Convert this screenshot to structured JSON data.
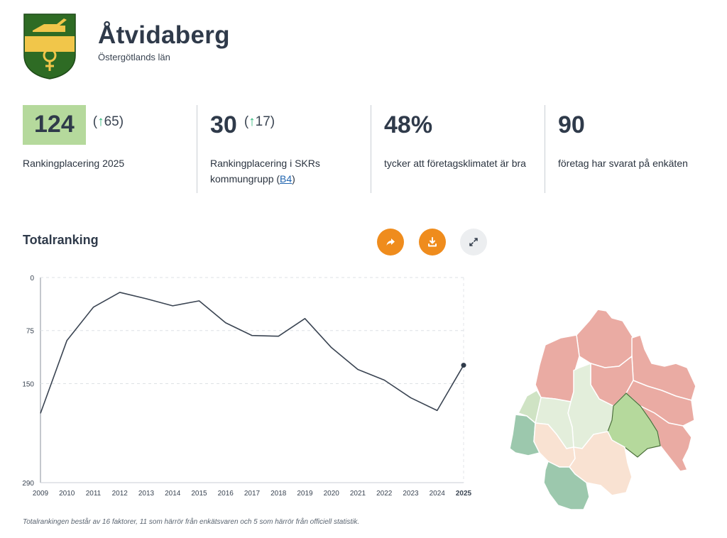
{
  "municipality": {
    "name": "Åtvidaberg",
    "county": "Östergötlands län"
  },
  "colors": {
    "accent_orange": "#ef8c1d",
    "highlight_green": "#b5d99c",
    "arrow_green": "#2eb87a",
    "line": "#3a4452"
  },
  "stats": [
    {
      "value": "124",
      "change_arrow": "↑",
      "change_value": "65",
      "label": "Rankingplacering 2025"
    },
    {
      "value": "30",
      "change_arrow": "↑",
      "change_value": "17",
      "label_line1": "Rankingplacering i SKRs",
      "label_line2_prefix": "kommungrupp (",
      "label_link": "B4",
      "label_line2_suffix": ")"
    },
    {
      "value": "48%",
      "label": "tycker att företagsklimatet är bra"
    },
    {
      "value": "90",
      "label": "företag har svarat på enkäten"
    }
  ],
  "section": {
    "title": "Totalranking",
    "buttons": [
      {
        "icon": "share-icon"
      },
      {
        "icon": "download-icon"
      },
      {
        "icon": "expand-icon"
      }
    ]
  },
  "chart_data": {
    "type": "line",
    "title": "Totalranking",
    "xlabel": "",
    "ylabel": "",
    "inverted_y": true,
    "ylim": [
      0,
      290
    ],
    "yticks": [
      "0",
      "75",
      "150",
      "290"
    ],
    "ytick_values": [
      0,
      75,
      150,
      290
    ],
    "categories": [
      "2009",
      "2010",
      "2011",
      "2012",
      "2013",
      "2014",
      "2015",
      "2016",
      "2017",
      "2018",
      "2019",
      "2020",
      "2021",
      "2022",
      "2023",
      "2024",
      "2025"
    ],
    "values": [
      192,
      89,
      42,
      21,
      30,
      40,
      33,
      64,
      82,
      83,
      58,
      99,
      130,
      145,
      170,
      188,
      124
    ],
    "highlight_last": true
  },
  "footnote": "Totalrankingen består av 16 faktorer, 11 som härrör från enkätsvaren och 5 som härrör från officiell statistik."
}
